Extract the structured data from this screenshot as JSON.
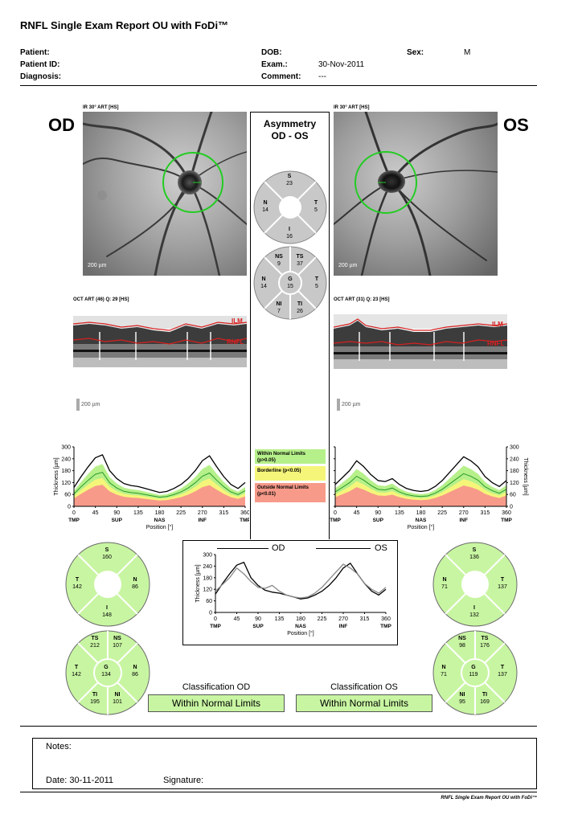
{
  "title": "RNFL Single Exam Report OU with FoDi™",
  "header": {
    "patient_label": "Patient:",
    "patient_id_label": "Patient ID:",
    "diagnosis_label": "Diagnosis:",
    "dob_label": "DOB:",
    "exam_label": "Exam.:",
    "exam_value": "30-Nov-2011",
    "comment_label": "Comment:",
    "comment_value": "---",
    "sex_label": "Sex:",
    "sex_value": "M"
  },
  "od": {
    "eye_label": "OD",
    "ir_label": "IR 30° ART [HS]",
    "scale_label": "200 µm",
    "oct_label": "OCT ART (46) Q: 29 [HS]",
    "ilm_label": "ILM",
    "rnfl_label": "RNFL",
    "sectors6": {
      "S": "160",
      "T": "142",
      "N": "86",
      "I": "148"
    },
    "sectors_g": {
      "TS": "212",
      "NS": "107",
      "T": "142",
      "G": "134",
      "N": "86",
      "TI": "195",
      "NI": "101"
    },
    "classification_title": "Classification OD",
    "classification_value": "Within Normal Limits"
  },
  "os": {
    "eye_label": "OS",
    "ir_label": "IR 30° ART [HS]",
    "scale_label": "200 µm",
    "oct_label": "OCT ART (31) Q: 23 [HS]",
    "ilm_label": "ILM",
    "rnfl_label": "RNFL",
    "sectors6": {
      "S": "136",
      "N": "71",
      "T": "137",
      "I": "132"
    },
    "sectors_g": {
      "NS": "98",
      "TS": "176",
      "N": "71",
      "G": "119",
      "T": "137",
      "NI": "95",
      "TI": "169"
    },
    "classification_title": "Classification OS",
    "classification_value": "Within Normal Limits"
  },
  "asymmetry": {
    "title_line1": "Asymmetry",
    "title_line2": "OD - OS",
    "sectors4": {
      "S": "23",
      "N": "14",
      "T": "5",
      "I": "16"
    },
    "sectors_g": {
      "NS": "9",
      "TS": "37",
      "N": "14",
      "G": "15",
      "T": "5",
      "NI": "7",
      "TI": "26"
    }
  },
  "legend": {
    "wnl": "Within Normal Limits (p>0.05)",
    "borderline": "Borderline (p<0.05)",
    "outside": "Outside Normal Limits (p<0.01)",
    "wnl_color": "#b6f08a",
    "borderline_color": "#f5f57a",
    "outside_color": "#f79a8a"
  },
  "chart_data": [
    {
      "type": "line",
      "ylabel": "Thickness [µm]",
      "xlabel": "Position [°]",
      "ylim": [
        0,
        300
      ],
      "xlim": [
        0,
        360
      ],
      "yticks": [
        0,
        60,
        120,
        180,
        240,
        300
      ],
      "xticks": [
        0,
        45,
        90,
        135,
        180,
        225,
        270,
        315,
        360
      ],
      "region_labels": [
        "TMP",
        "SUP",
        "NAS",
        "INF",
        "TMP"
      ],
      "x": [
        0,
        15,
        30,
        45,
        60,
        75,
        90,
        105,
        120,
        135,
        150,
        165,
        180,
        195,
        210,
        225,
        240,
        255,
        270,
        285,
        300,
        315,
        330,
        345,
        360
      ],
      "series": [
        {
          "name": "OD",
          "values": [
            95,
            150,
            200,
            245,
            260,
            180,
            140,
            115,
            105,
            100,
            90,
            80,
            70,
            75,
            90,
            110,
            140,
            180,
            230,
            255,
            200,
            150,
            110,
            90,
            120
          ]
        }
      ]
    },
    {
      "type": "line",
      "ylabel": "Thickness [µm]",
      "xlabel": "Position [°]",
      "ylim": [
        0,
        300
      ],
      "xlim": [
        0,
        360
      ],
      "yticks": [
        0,
        60,
        120,
        180,
        240,
        300
      ],
      "xticks": [
        0,
        45,
        90,
        135,
        180,
        225,
        270,
        315,
        360
      ],
      "region_labels": [
        "TMP",
        "SUP",
        "NAS",
        "INF",
        "TMP"
      ],
      "x": [
        0,
        15,
        30,
        45,
        60,
        75,
        90,
        105,
        120,
        135,
        150,
        165,
        180,
        195,
        210,
        225,
        240,
        255,
        270,
        285,
        300,
        315,
        330,
        345,
        360
      ],
      "series": [
        {
          "name": "OS",
          "values": [
            110,
            145,
            180,
            230,
            200,
            160,
            130,
            125,
            140,
            110,
            90,
            80,
            75,
            80,
            100,
            130,
            170,
            210,
            250,
            230,
            200,
            150,
            120,
            100,
            130
          ]
        }
      ]
    },
    {
      "type": "line",
      "ylabel": "Thickness [µm]",
      "xlabel": "Position [°]",
      "ylim": [
        0,
        300
      ],
      "xlim": [
        0,
        360
      ],
      "yticks": [
        0,
        60,
        120,
        180,
        240,
        300
      ],
      "xticks": [
        0,
        45,
        90,
        135,
        180,
        225,
        270,
        315,
        360
      ],
      "region_labels": [
        "TMP",
        "SUP",
        "NAS",
        "INF",
        "TMP"
      ],
      "x": [
        0,
        15,
        30,
        45,
        60,
        75,
        90,
        105,
        120,
        135,
        150,
        165,
        180,
        195,
        210,
        225,
        240,
        255,
        270,
        285,
        300,
        315,
        330,
        345,
        360
      ],
      "series": [
        {
          "name": "OD",
          "values": [
            95,
            150,
            200,
            245,
            260,
            180,
            140,
            115,
            105,
            100,
            90,
            80,
            70,
            75,
            90,
            110,
            140,
            180,
            230,
            255,
            200,
            150,
            110,
            90,
            120
          ]
        },
        {
          "name": "OS",
          "values": [
            110,
            145,
            180,
            230,
            200,
            160,
            130,
            125,
            140,
            110,
            90,
            80,
            75,
            80,
            100,
            130,
            170,
            210,
            250,
            230,
            200,
            150,
            120,
            100,
            130
          ]
        }
      ]
    }
  ],
  "notes": {
    "notes_label": "Notes:",
    "date_label": "Date: 30-11-2011",
    "signature_label": "Signature:"
  },
  "footer": "RNFL Single Exam Report OU with FoDi™"
}
